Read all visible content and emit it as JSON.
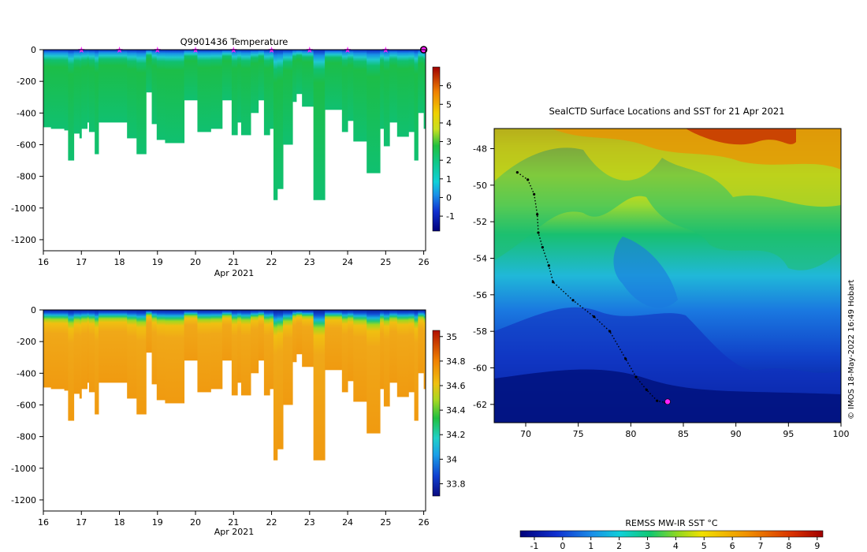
{
  "chart_data": [
    {
      "type": "heatmap",
      "title": "Q9901436  Temperature",
      "xlabel": "Apr 2021",
      "ylabel": "",
      "x_ticks": [
        "16",
        "17",
        "18",
        "19",
        "20",
        "21",
        "22",
        "23",
        "24",
        "25",
        "26"
      ],
      "y_ticks": [
        "0",
        "-200",
        "-400",
        "-600",
        "-800",
        "-1000",
        "-1200"
      ],
      "xlim": [
        16,
        26.05
      ],
      "ylim": [
        -1270,
        0
      ],
      "colorbar_ticks": [
        "6",
        "5",
        "4",
        "3",
        "2",
        "1",
        "0",
        "-1"
      ],
      "colorbar_range": [
        -1.8,
        7
      ],
      "profile_markers": [
        17,
        18,
        19,
        20,
        21,
        22,
        23,
        24,
        25
      ],
      "profile_depths": [
        {
          "x": 16.0,
          "depth": -490
        },
        {
          "x": 16.2,
          "depth": -500
        },
        {
          "x": 16.55,
          "depth": -510
        },
        {
          "x": 16.65,
          "depth": -700
        },
        {
          "x": 16.8,
          "depth": -530
        },
        {
          "x": 16.95,
          "depth": -560
        },
        {
          "x": 17.0,
          "depth": -500
        },
        {
          "x": 17.15,
          "depth": -460
        },
        {
          "x": 17.2,
          "depth": -520
        },
        {
          "x": 17.35,
          "depth": -660
        },
        {
          "x": 17.45,
          "depth": -460
        },
        {
          "x": 18.2,
          "depth": -560
        },
        {
          "x": 18.45,
          "depth": -660
        },
        {
          "x": 18.7,
          "depth": -270
        },
        {
          "x": 18.85,
          "depth": -470
        },
        {
          "x": 18.98,
          "depth": -570
        },
        {
          "x": 19.2,
          "depth": -590
        },
        {
          "x": 19.7,
          "depth": -320
        },
        {
          "x": 20.05,
          "depth": -520
        },
        {
          "x": 20.4,
          "depth": -500
        },
        {
          "x": 20.7,
          "depth": -320
        },
        {
          "x": 20.95,
          "depth": -540
        },
        {
          "x": 21.1,
          "depth": -460
        },
        {
          "x": 21.2,
          "depth": -540
        },
        {
          "x": 21.45,
          "depth": -400
        },
        {
          "x": 21.65,
          "depth": -320
        },
        {
          "x": 21.8,
          "depth": -540
        },
        {
          "x": 21.95,
          "depth": -500
        },
        {
          "x": 22.05,
          "depth": -950
        },
        {
          "x": 22.15,
          "depth": -880
        },
        {
          "x": 22.3,
          "depth": -600
        },
        {
          "x": 22.55,
          "depth": -330
        },
        {
          "x": 22.65,
          "depth": -280
        },
        {
          "x": 22.8,
          "depth": -360
        },
        {
          "x": 23.1,
          "depth": -950
        },
        {
          "x": 23.4,
          "depth": -380
        },
        {
          "x": 23.85,
          "depth": -520
        },
        {
          "x": 24.0,
          "depth": -450
        },
        {
          "x": 24.15,
          "depth": -580
        },
        {
          "x": 24.5,
          "depth": -780
        },
        {
          "x": 24.85,
          "depth": -500
        },
        {
          "x": 24.95,
          "depth": -610
        },
        {
          "x": 25.1,
          "depth": -460
        },
        {
          "x": 25.3,
          "depth": -550
        },
        {
          "x": 25.6,
          "depth": -520
        },
        {
          "x": 25.75,
          "depth": -700
        },
        {
          "x": 25.85,
          "depth": -400
        },
        {
          "x": 26.0,
          "depth": -500
        }
      ]
    },
    {
      "type": "heatmap",
      "title": "",
      "xlabel": "Apr 2021",
      "ylabel": "",
      "x_ticks": [
        "16",
        "17",
        "18",
        "19",
        "20",
        "21",
        "22",
        "23",
        "24",
        "25",
        "26"
      ],
      "y_ticks": [
        "0",
        "-200",
        "-400",
        "-600",
        "-800",
        "-1000",
        "-1200"
      ],
      "xlim": [
        16,
        26.05
      ],
      "ylim": [
        -1270,
        0
      ],
      "colorbar_ticks": [
        "35",
        "34.8",
        "34.6",
        "34.4",
        "34.2",
        "34",
        "33.8"
      ],
      "colorbar_range": [
        33.7,
        35.05
      ]
    },
    {
      "type": "heatmap",
      "title": "SealCTD Surface Locations and SST for 21 Apr 2021",
      "xlabel": "",
      "ylabel": "",
      "x_ticks": [
        "70",
        "75",
        "80",
        "85",
        "90",
        "95",
        "100"
      ],
      "y_ticks": [
        "-48",
        "-50",
        "-52",
        "-54",
        "-56",
        "-58",
        "-60",
        "-62"
      ],
      "xlim": [
        67,
        100
      ],
      "ylim": [
        -63,
        -46.9
      ],
      "colorbar_label": "REMSS MW-IR SST °C",
      "colorbar_ticks": [
        "-1",
        "0",
        "1",
        "2",
        "3",
        "4",
        "5",
        "6",
        "7",
        "8",
        "9"
      ],
      "colorbar_range": [
        -1.5,
        9.2
      ],
      "credit": "© IMOS 18-May-2022 16:49 Hobart",
      "track": [
        {
          "lon": 69.2,
          "lat": -49.3
        },
        {
          "lon": 70.2,
          "lat": -49.7
        },
        {
          "lon": 70.8,
          "lat": -50.5
        },
        {
          "lon": 71.1,
          "lat": -51.6
        },
        {
          "lon": 71.2,
          "lat": -52.6
        },
        {
          "lon": 71.6,
          "lat": -53.4
        },
        {
          "lon": 72.2,
          "lat": -54.4
        },
        {
          "lon": 72.6,
          "lat": -55.3
        },
        {
          "lon": 74.5,
          "lat": -56.3
        },
        {
          "lon": 76.5,
          "lat": -57.2
        },
        {
          "lon": 78.0,
          "lat": -58.0
        },
        {
          "lon": 79.5,
          "lat": -59.5
        },
        {
          "lon": 80.5,
          "lat": -60.5
        },
        {
          "lon": 81.5,
          "lat": -61.2
        },
        {
          "lon": 82.5,
          "lat": -61.8
        },
        {
          "lon": 83.3,
          "lat": -61.9
        }
      ],
      "current_position": {
        "lon": 83.5,
        "lat": -61.85
      }
    }
  ]
}
